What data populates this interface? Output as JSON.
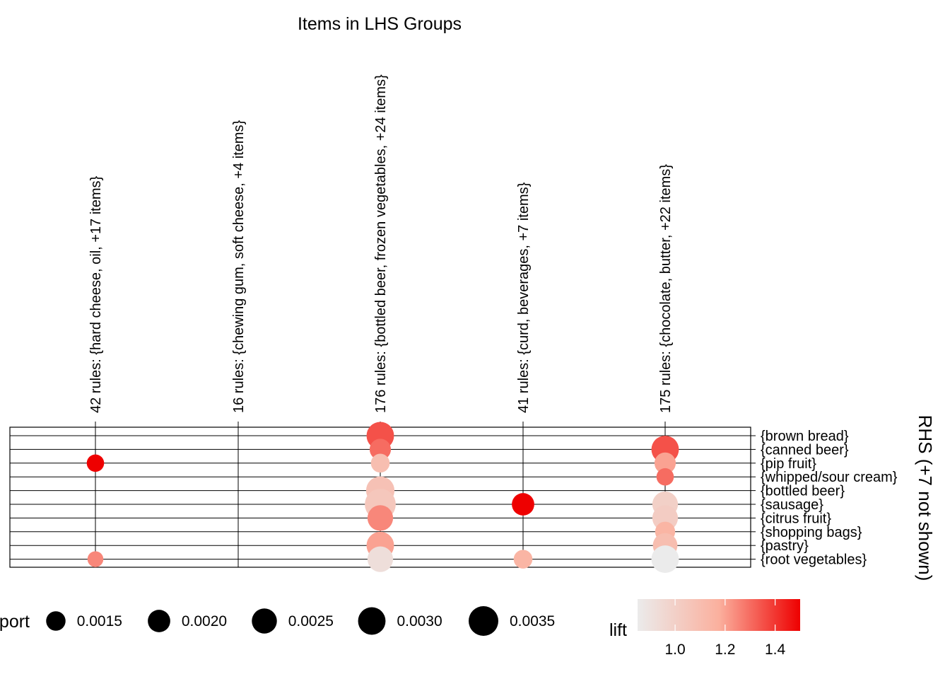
{
  "chart_data": {
    "type": "scatter",
    "title": "Items in LHS Groups",
    "ylabel": "RHS (+7 not shown)",
    "lhs_groups": [
      "42 rules: {hard cheese, oil, +17 items}",
      "16 rules: {chewing gum, soft cheese, +4 items}",
      "176 rules: {bottled beer, frozen vegetables, +24 items}",
      "41 rules: {curd, beverages, +7 items}",
      "175 rules: {chocolate, butter, +22 items}"
    ],
    "rhs_items": [
      "{brown bread}",
      "{canned beer}",
      "{pip fruit}",
      "{whipped/sour cream}",
      "{bottled beer}",
      "{sausage}",
      "{citrus fruit}",
      "{shopping bags}",
      "{pastry}",
      "{root vegetables}"
    ],
    "points": [
      {
        "lhs": 0,
        "rhs": 2,
        "support": 0.0012,
        "lift": 1.5
      },
      {
        "lhs": 0,
        "rhs": 9,
        "support": 0.001,
        "lift": 1.25
      },
      {
        "lhs": 2,
        "rhs": 0,
        "support": 0.003,
        "lift": 1.35
      },
      {
        "lhs": 2,
        "rhs": 1,
        "support": 0.0018,
        "lift": 1.3
      },
      {
        "lhs": 2,
        "rhs": 2,
        "support": 0.0014,
        "lift": 1.1
      },
      {
        "lhs": 2,
        "rhs": 4,
        "support": 0.0032,
        "lift": 1.08
      },
      {
        "lhs": 2,
        "rhs": 5,
        "support": 0.0038,
        "lift": 1.05
      },
      {
        "lhs": 2,
        "rhs": 6,
        "support": 0.0026,
        "lift": 1.25
      },
      {
        "lhs": 2,
        "rhs": 8,
        "support": 0.003,
        "lift": 1.2
      },
      {
        "lhs": 2,
        "rhs": 9,
        "support": 0.0026,
        "lift": 0.92
      },
      {
        "lhs": 3,
        "rhs": 5,
        "support": 0.002,
        "lift": 1.5
      },
      {
        "lhs": 3,
        "rhs": 9,
        "support": 0.0014,
        "lift": 1.15
      },
      {
        "lhs": 4,
        "rhs": 1,
        "support": 0.003,
        "lift": 1.35
      },
      {
        "lhs": 4,
        "rhs": 2,
        "support": 0.0018,
        "lift": 1.2
      },
      {
        "lhs": 4,
        "rhs": 3,
        "support": 0.0012,
        "lift": 1.3
      },
      {
        "lhs": 4,
        "rhs": 5,
        "support": 0.0026,
        "lift": 1.0
      },
      {
        "lhs": 4,
        "rhs": 6,
        "support": 0.0026,
        "lift": 1.02
      },
      {
        "lhs": 4,
        "rhs": 7,
        "support": 0.0016,
        "lift": 1.15
      },
      {
        "lhs": 4,
        "rhs": 8,
        "support": 0.0024,
        "lift": 1.1
      },
      {
        "lhs": 4,
        "rhs": 9,
        "support": 0.003,
        "lift": 0.85
      }
    ],
    "legend": {
      "size_title": "support",
      "size_breaks": [
        0.0015,
        0.002,
        0.0025,
        0.003,
        0.0035
      ],
      "size_labels": [
        "0.0015",
        "0.0020",
        "0.0025",
        "0.0030",
        "0.0035"
      ],
      "color_title": "lift",
      "color_range": [
        0.85,
        1.5
      ],
      "color_breaks": [
        1.0,
        1.2,
        1.4
      ],
      "color_labels": [
        "1.0",
        "1.2",
        "1.4"
      ],
      "color_low": "#ebebeb",
      "color_high": "#ee0000"
    }
  }
}
